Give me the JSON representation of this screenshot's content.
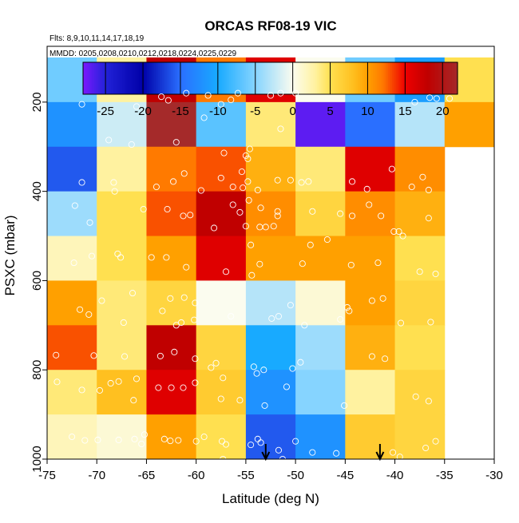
{
  "chart_data": {
    "type": "heatmap",
    "title": "ORCAS RF08-19 VIC",
    "flights_note": "Flts: 8,9,10,11,14,17,18,19",
    "dates_note": "MMDD: 0205,0208,0210,0212,0218,0224,0225,0229",
    "xlabel": "Latitude (deg N)",
    "ylabel": "PSXC (mbar)",
    "xlim": [
      -75,
      -30
    ],
    "ylim": [
      1000,
      75
    ],
    "x_ticks": [
      -75,
      -70,
      -65,
      -60,
      -55,
      -50,
      -45,
      -40,
      -35,
      -30
    ],
    "y_ticks": [
      200,
      400,
      600,
      800,
      1000
    ],
    "colorbar": {
      "range": [
        -28,
        22
      ],
      "ticks": [
        -25,
        -20,
        -15,
        -10,
        -5,
        0,
        5,
        10,
        15,
        20
      ],
      "stops": [
        {
          "v": -28,
          "color": "#7a19ff"
        },
        {
          "v": -25,
          "color": "#2222d8"
        },
        {
          "v": -20,
          "color": "#0000a8"
        },
        {
          "v": -15,
          "color": "#2a6fff"
        },
        {
          "v": -10,
          "color": "#18aaff"
        },
        {
          "v": -5,
          "color": "#86d4ff"
        },
        {
          "v": 0,
          "color": "#fbfcef"
        },
        {
          "v": 3,
          "color": "#fff2a0"
        },
        {
          "v": 5,
          "color": "#ffe050"
        },
        {
          "v": 8,
          "color": "#ffc020"
        },
        {
          "v": 10,
          "color": "#ffa000"
        },
        {
          "v": 12,
          "color": "#ff7a00"
        },
        {
          "v": 15,
          "color": "#ee0000"
        },
        {
          "v": 18,
          "color": "#c00000"
        },
        {
          "v": 22,
          "color": "#a52a2a"
        }
      ]
    },
    "lat_bins": [
      -75,
      -70,
      -65,
      -60,
      -55,
      -50,
      -45,
      -40,
      -35,
      -30
    ],
    "pressure_bins": [
      100,
      200,
      300,
      400,
      500,
      600,
      700,
      800,
      900,
      1000
    ],
    "values": [
      [
        -6,
        3,
        18,
        12,
        16,
        0,
        -6,
        -11,
        5
      ],
      [
        -12,
        -2,
        22,
        -7,
        4,
        -27,
        -15,
        -3,
        10
      ],
      [
        -16,
        3,
        12,
        13,
        9,
        4,
        16,
        11,
        null
      ],
      [
        -4,
        5,
        13,
        18,
        11,
        6,
        11,
        9,
        null
      ],
      [
        2,
        5,
        10,
        16,
        10,
        10,
        10,
        5,
        null
      ],
      [
        10,
        4,
        6,
        0,
        -3,
        1,
        10,
        6,
        null
      ],
      [
        13,
        4,
        18,
        6,
        -10,
        -4,
        9,
        5,
        null
      ],
      [
        4,
        8,
        16,
        7,
        -12,
        -5,
        3,
        6,
        null
      ],
      [
        2,
        1,
        10,
        5,
        -16,
        -12,
        7,
        6,
        null
      ]
    ],
    "samples": [
      [
        -71.5,
        205
      ],
      [
        -66,
        210
      ],
      [
        -63.5,
        188
      ],
      [
        -62.8,
        196
      ],
      [
        -61,
        180
      ],
      [
        -58.8,
        185
      ],
      [
        -57.5,
        205
      ],
      [
        -56.5,
        195
      ],
      [
        -55.8,
        180
      ],
      [
        -52.5,
        185
      ],
      [
        -51.5,
        180
      ],
      [
        -50,
        180
      ],
      [
        -38,
        200
      ],
      [
        -36.5,
        190
      ],
      [
        -35.8,
        192
      ],
      [
        -34.5,
        192
      ],
      [
        -68.8,
        285
      ],
      [
        -62,
        290
      ],
      [
        -59.2,
        235
      ],
      [
        -51.5,
        260
      ],
      [
        -66.5,
        295
      ],
      [
        -54.6,
        305
      ],
      [
        -54.8,
        327
      ],
      [
        -55,
        320
      ],
      [
        -57.2,
        314
      ],
      [
        -71.5,
        380
      ],
      [
        -68.3,
        380
      ],
      [
        -68.2,
        400
      ],
      [
        -64,
        390
      ],
      [
        -62.3,
        378
      ],
      [
        -61.2,
        360
      ],
      [
        -59.5,
        398
      ],
      [
        -57.5,
        370
      ],
      [
        -56.3,
        390
      ],
      [
        -55.3,
        392
      ],
      [
        -54.8,
        378
      ],
      [
        -53.8,
        397
      ],
      [
        -51.8,
        375
      ],
      [
        -50.5,
        375
      ],
      [
        -49.4,
        380
      ],
      [
        -48.7,
        378
      ],
      [
        -44.3,
        378
      ],
      [
        -42.8,
        395
      ],
      [
        -40.3,
        350
      ],
      [
        -37.2,
        368
      ],
      [
        -38.3,
        390
      ],
      [
        -36.6,
        397
      ],
      [
        -55.4,
        356
      ],
      [
        -72.2,
        432
      ],
      [
        -65.3,
        440
      ],
      [
        -62.9,
        440
      ],
      [
        -61.3,
        455
      ],
      [
        -60.6,
        453
      ],
      [
        -56.3,
        430
      ],
      [
        -55.6,
        447
      ],
      [
        -54.7,
        420
      ],
      [
        -53.5,
        437
      ],
      [
        -51.8,
        445
      ],
      [
        -51.8,
        455
      ],
      [
        -48.3,
        445
      ],
      [
        -45.5,
        450
      ],
      [
        -42.6,
        430
      ],
      [
        -40.1,
        490
      ],
      [
        -39.6,
        490
      ],
      [
        -36.6,
        460
      ],
      [
        -70.7,
        470
      ],
      [
        -53.6,
        480
      ],
      [
        -53,
        480
      ],
      [
        -52.2,
        478
      ],
      [
        -55,
        478
      ],
      [
        -58.2,
        482
      ],
      [
        -39.2,
        500
      ],
      [
        -48.5,
        520
      ],
      [
        -46.8,
        508
      ],
      [
        -44.3,
        455
      ],
      [
        -41.4,
        455
      ],
      [
        -72.3,
        560
      ],
      [
        -70.5,
        545
      ],
      [
        -67.9,
        540
      ],
      [
        -67.6,
        548
      ],
      [
        -64.5,
        548
      ],
      [
        -63,
        548
      ],
      [
        -61,
        570
      ],
      [
        -57,
        580
      ],
      [
        -54.4,
        588
      ],
      [
        -53.6,
        563
      ],
      [
        -49.3,
        562
      ],
      [
        -44.4,
        565
      ],
      [
        -41.7,
        560
      ],
      [
        -37.5,
        580
      ],
      [
        -35.9,
        585
      ],
      [
        -54.5,
        520
      ],
      [
        -62.6,
        640
      ],
      [
        -61.2,
        638
      ],
      [
        -60.1,
        650
      ],
      [
        -66.4,
        628
      ],
      [
        -69.5,
        645
      ],
      [
        -71.7,
        665
      ],
      [
        -67.3,
        694
      ],
      [
        -63.4,
        668
      ],
      [
        -61.5,
        694
      ],
      [
        -60.2,
        688
      ],
      [
        -52.4,
        685
      ],
      [
        -51.7,
        680
      ],
      [
        -49.1,
        700
      ],
      [
        -45.5,
        687
      ],
      [
        -44.8,
        660
      ],
      [
        -44.6,
        668
      ],
      [
        -39.4,
        695
      ],
      [
        -36.4,
        693
      ],
      [
        -41.2,
        640
      ],
      [
        -42.3,
        645
      ],
      [
        -50.5,
        655
      ],
      [
        -56.5,
        680
      ],
      [
        -62,
        700
      ],
      [
        -70.8,
        676
      ],
      [
        -74.1,
        767
      ],
      [
        -70.3,
        768
      ],
      [
        -67.2,
        770
      ],
      [
        -63.6,
        769
      ],
      [
        -62.2,
        760
      ],
      [
        -60.1,
        775
      ],
      [
        -58.5,
        795
      ],
      [
        -58,
        785
      ],
      [
        -54.2,
        793
      ],
      [
        -53.9,
        808
      ],
      [
        -50.3,
        797
      ],
      [
        -49.5,
        783
      ],
      [
        -42.3,
        770
      ],
      [
        -41,
        775
      ],
      [
        -57.3,
        818
      ],
      [
        -53.2,
        800
      ],
      [
        -74,
        827
      ],
      [
        -71.5,
        845
      ],
      [
        -69.7,
        846
      ],
      [
        -68.6,
        830
      ],
      [
        -66.3,
        868
      ],
      [
        -63.8,
        840
      ],
      [
        -62.5,
        840
      ],
      [
        -60.1,
        829
      ],
      [
        -57.5,
        865
      ],
      [
        -55.6,
        868
      ],
      [
        -53.1,
        880
      ],
      [
        -50.9,
        838
      ],
      [
        -45.1,
        880
      ],
      [
        -37.9,
        860
      ],
      [
        -36.6,
        870
      ],
      [
        -66,
        820
      ],
      [
        -67.8,
        826
      ],
      [
        -61.3,
        840
      ],
      [
        -72.5,
        950
      ],
      [
        -71.2,
        958
      ],
      [
        -69.9,
        957
      ],
      [
        -67.8,
        957
      ],
      [
        -66.2,
        955
      ],
      [
        -65.2,
        945
      ],
      [
        -63.2,
        955
      ],
      [
        -61.8,
        958
      ],
      [
        -60,
        960
      ],
      [
        -59.2,
        950
      ],
      [
        -57.4,
        960
      ],
      [
        -57,
        967
      ],
      [
        -53.8,
        955
      ],
      [
        -53.5,
        963
      ],
      [
        -50,
        960
      ],
      [
        -48.3,
        985
      ],
      [
        -45.9,
        987
      ],
      [
        -40.2,
        985
      ],
      [
        -39.5,
        995
      ],
      [
        -36.9,
        975
      ],
      [
        -35.9,
        960
      ],
      [
        -54.5,
        968
      ],
      [
        -62.6,
        959
      ],
      [
        -60.8,
        1002
      ],
      [
        -57.3,
        1000
      ],
      [
        -51.3,
        1000
      ],
      [
        -50.7,
        1003
      ],
      [
        -47.6,
        1002
      ],
      [
        -42.2,
        1002
      ],
      [
        -39.6,
        1002
      ],
      [
        -49.4,
        1001
      ],
      [
        -65.5,
        966
      ],
      [
        -51.7,
        980
      ]
    ],
    "arrows": [
      -53,
      -41.5
    ]
  }
}
